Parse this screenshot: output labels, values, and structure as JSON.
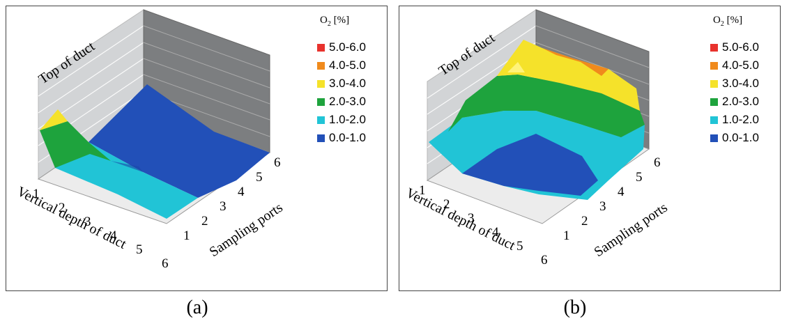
{
  "figure": {
    "captions": [
      "(a)",
      "(b)"
    ]
  },
  "chart_data": [
    {
      "type": "surface",
      "legend_title": "O2 [%]",
      "legend_title_main": "O",
      "legend_title_sub": "2",
      "legend_title_unit": " [%]",
      "legend": [
        {
          "label": "5.0-6.0",
          "color": "#e8322d"
        },
        {
          "label": "4.0-5.0",
          "color": "#f08a1c"
        },
        {
          "label": "3.0-4.0",
          "color": "#f5e22a"
        },
        {
          "label": "2.0-3.0",
          "color": "#1ea33d"
        },
        {
          "label": "1.0-2.0",
          "color": "#21c4d6"
        },
        {
          "label": "0.0-1.0",
          "color": "#2250b8"
        }
      ],
      "wall_label": "Top of duct",
      "xlabel": "Vertical depth of duct",
      "ylabel": "Sampling ports",
      "x_ticks": [
        "1",
        "2",
        "3",
        "4",
        "5",
        "6"
      ],
      "y_ticks": [
        "1",
        "2",
        "3",
        "4",
        "5",
        "6"
      ],
      "zlim": [
        0,
        6
      ],
      "dominant_range": "0.0-1.0",
      "note": "high O2 (2.0-4.0) near vertical depth 1 at sampling port 1; remainder mostly 0.0-2.0"
    },
    {
      "type": "surface",
      "legend_title": "O2 [%]",
      "legend_title_main": "O",
      "legend_title_sub": "2",
      "legend_title_unit": " [%]",
      "legend": [
        {
          "label": "5.0-6.0",
          "color": "#e8322d"
        },
        {
          "label": "4.0-5.0",
          "color": "#f08a1c"
        },
        {
          "label": "3.0-4.0",
          "color": "#f5e22a"
        },
        {
          "label": "2.0-3.0",
          "color": "#1ea33d"
        },
        {
          "label": "1.0-2.0",
          "color": "#21c4d6"
        },
        {
          "label": "0.0-1.0",
          "color": "#2250b8"
        }
      ],
      "wall_label": "Top of duct",
      "xlabel": "Vertical depth of duct",
      "ylabel": "Sampling ports",
      "x_ticks": [
        "1",
        "2",
        "3",
        "4",
        "5",
        "6"
      ],
      "y_ticks": [
        "1",
        "2",
        "3",
        "4",
        "5",
        "6"
      ],
      "zlim": [
        0,
        6
      ],
      "dominant_range": "mixed",
      "note": "bowl-shaped surface: 0.0-1.0 in the center, rising through 1.0-3.0 to 3.0-5.0 near the top of duct"
    }
  ]
}
